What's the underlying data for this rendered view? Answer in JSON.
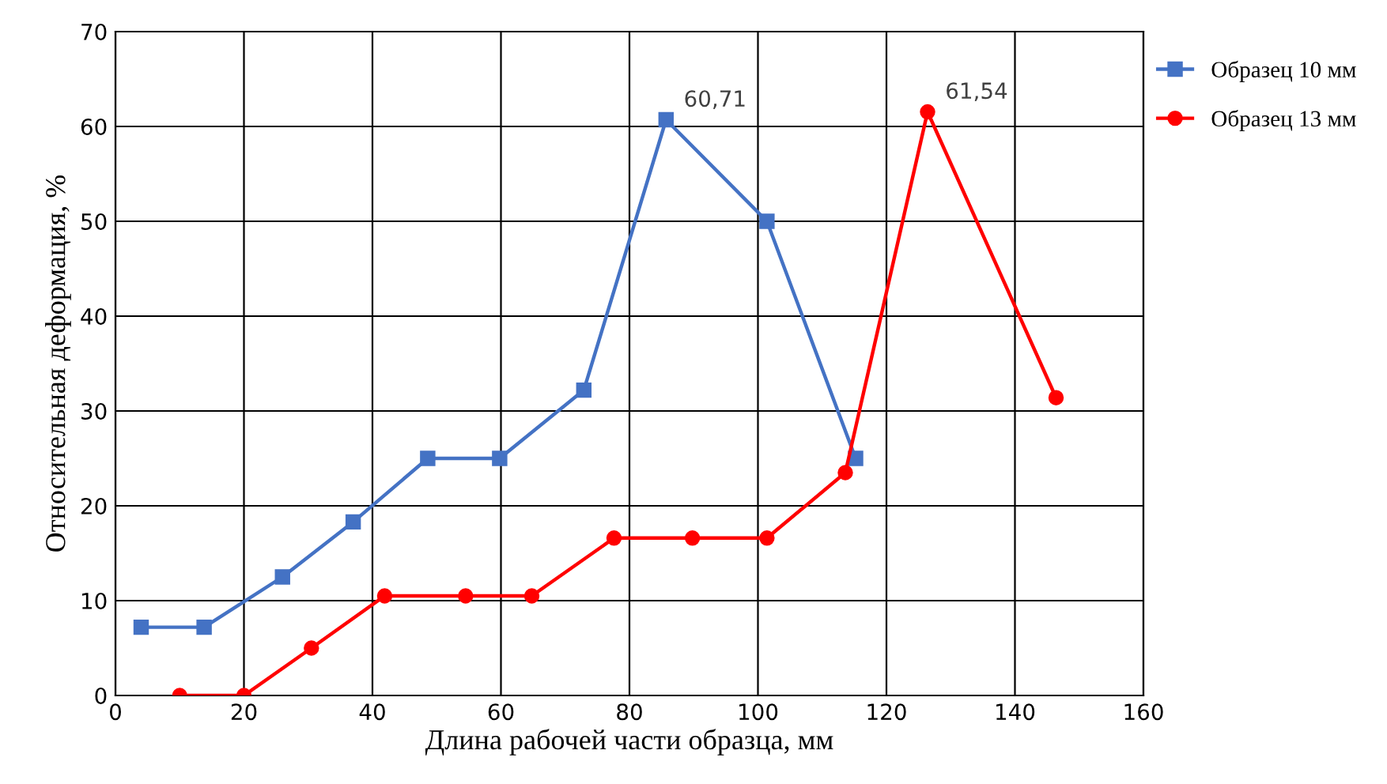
{
  "chart_data": {
    "type": "line",
    "xlabel": "Длина рабочей части образца, мм",
    "ylabel": "Относительная деформация, %",
    "xlim": [
      0,
      160
    ],
    "xticks": [
      0,
      20,
      40,
      60,
      80,
      100,
      120,
      140,
      160
    ],
    "ylim": [
      0,
      70
    ],
    "yticks": [
      0,
      10,
      20,
      30,
      40,
      50,
      60,
      70
    ],
    "grid": true,
    "legend": "right",
    "series": [
      {
        "name": "Образец 10 мм",
        "color": "#4472c4",
        "marker": "square",
        "x": [
          4,
          13.8,
          26,
          37,
          48.6,
          59.8,
          72.9,
          85.7,
          101.4,
          115.2
        ],
        "values": [
          7.2,
          7.2,
          12.5,
          18.3,
          25,
          25,
          32.2,
          60.71,
          50,
          25
        ]
      },
      {
        "name": "Образец 13 мм",
        "color": "#ff0000",
        "marker": "circle",
        "x": [
          10,
          20,
          30.5,
          41.9,
          54.5,
          64.8,
          77.6,
          89.8,
          101.4,
          113.6,
          126.4,
          146.4
        ],
        "values": [
          0,
          0,
          5,
          10.5,
          10.5,
          10.5,
          16.6,
          16.6,
          16.6,
          23.5,
          61.54,
          31.4
        ]
      }
    ],
    "annotations": [
      {
        "text": "60,71",
        "x": 85.7,
        "y": 60.71
      },
      {
        "text": "61,54",
        "x": 126.4,
        "y": 61.54
      }
    ]
  }
}
